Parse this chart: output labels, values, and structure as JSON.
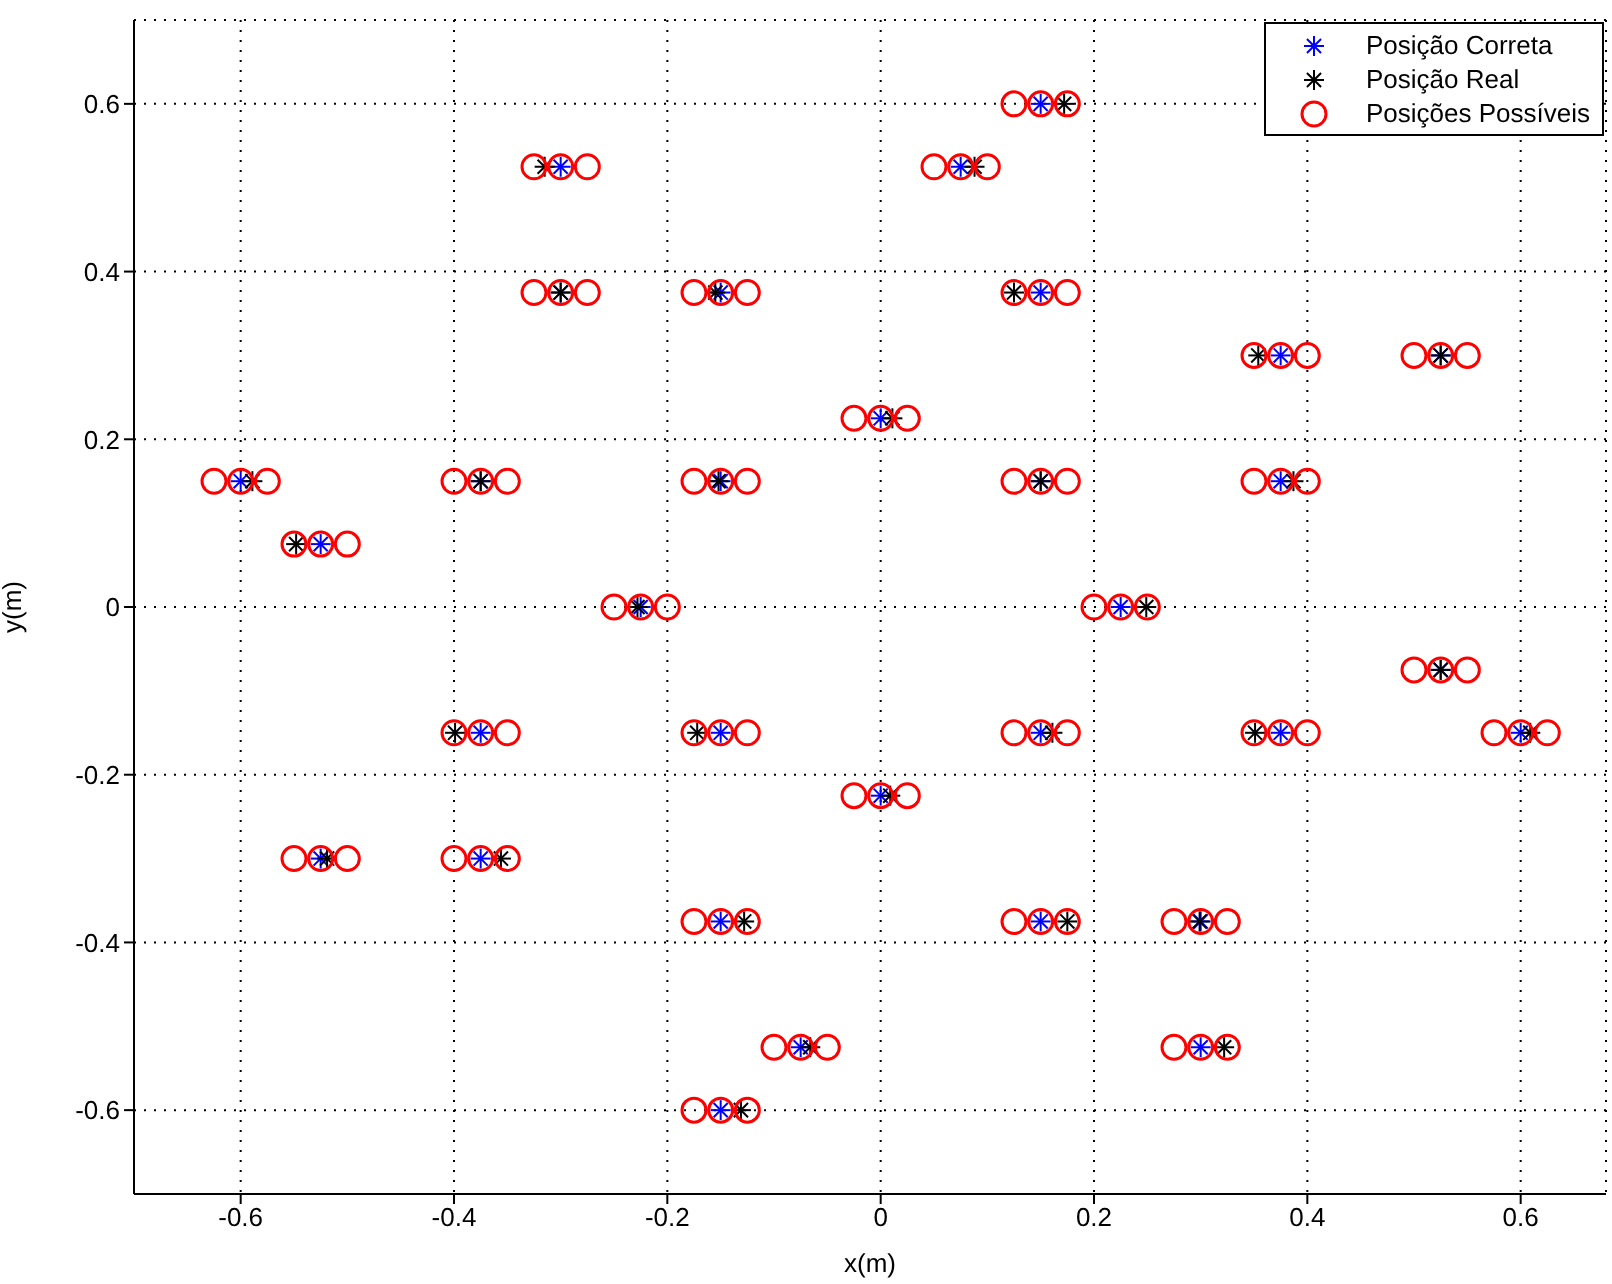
{
  "chart_data": {
    "type": "scatter",
    "xlabel": "x(m)",
    "ylabel": "y(m)",
    "xlim": [
      -0.7,
      0.68
    ],
    "ylim": [
      -0.7,
      0.7
    ],
    "xticks": [
      -0.6,
      -0.4,
      -0.2,
      0,
      0.2,
      0.4,
      0.6
    ],
    "yticks": [
      -0.6,
      -0.4,
      -0.2,
      0,
      0.2,
      0.4,
      0.6
    ],
    "grid": true,
    "legend": "top right",
    "series": [
      {
        "name": "Posição Correta",
        "color": "#0000ff",
        "marker": "cross",
        "x": [
          0.15,
          -0.3,
          0.075,
          -0.3,
          -0.15,
          0.15,
          0.375,
          0.525,
          0,
          -0.6,
          -0.375,
          -0.15,
          0.15,
          0.375,
          -0.525,
          -0.225,
          0.225,
          0.525,
          -0.375,
          -0.15,
          0.15,
          0.375,
          0.6,
          0,
          -0.525,
          -0.375,
          -0.15,
          0.15,
          0.3,
          -0.075,
          0.3,
          -0.15
        ],
        "values": [
          0.6,
          0.525,
          0.525,
          0.375,
          0.375,
          0.375,
          0.3,
          0.3,
          0.225,
          0.15,
          0.15,
          0.15,
          0.15,
          0.15,
          0.075,
          0,
          0,
          -0.075,
          -0.15,
          -0.15,
          -0.15,
          -0.15,
          -0.15,
          -0.225,
          -0.3,
          -0.3,
          -0.375,
          -0.375,
          -0.375,
          -0.525,
          -0.525,
          -0.6
        ]
      },
      {
        "name": "Posição Real",
        "color": "#000000",
        "marker": "cross",
        "x": [
          0.172,
          -0.315,
          0.088,
          -0.3,
          -0.155,
          0.125,
          0.354,
          0.525,
          0.011,
          -0.589,
          -0.375,
          -0.152,
          0.15,
          0.387,
          -0.548,
          -0.228,
          0.249,
          0.525,
          -0.399,
          -0.172,
          0.161,
          0.351,
          0.609,
          0.009,
          -0.519,
          -0.356,
          -0.128,
          0.175,
          0.299,
          -0.066,
          0.322,
          -0.131
        ],
        "values": [
          0.6,
          0.525,
          0.525,
          0.375,
          0.375,
          0.375,
          0.3,
          0.3,
          0.225,
          0.15,
          0.15,
          0.15,
          0.15,
          0.15,
          0.075,
          0,
          0,
          -0.075,
          -0.15,
          -0.15,
          -0.15,
          -0.15,
          -0.15,
          -0.225,
          -0.3,
          -0.3,
          -0.375,
          -0.375,
          -0.375,
          -0.525,
          -0.525,
          -0.6
        ]
      },
      {
        "name": "Posições Possíveis",
        "color": "#ff0000",
        "marker": "circle",
        "x": [
          0.125,
          0.15,
          0.175,
          -0.325,
          -0.3,
          -0.275,
          0.05,
          0.075,
          0.1,
          -0.325,
          -0.3,
          -0.275,
          -0.175,
          -0.15,
          -0.125,
          0.125,
          0.15,
          0.175,
          0.35,
          0.375,
          0.4,
          0.5,
          0.525,
          0.55,
          -0.025,
          0,
          0.025,
          -0.625,
          -0.6,
          -0.575,
          -0.4,
          -0.375,
          -0.35,
          -0.175,
          -0.15,
          -0.125,
          0.125,
          0.15,
          0.175,
          0.35,
          0.375,
          0.4,
          -0.55,
          -0.525,
          -0.5,
          -0.25,
          -0.225,
          -0.2,
          0.2,
          0.225,
          0.25,
          0.5,
          0.525,
          0.55,
          -0.4,
          -0.375,
          -0.35,
          -0.175,
          -0.15,
          -0.125,
          0.125,
          0.15,
          0.175,
          0.35,
          0.375,
          0.4,
          0.575,
          0.6,
          0.625,
          -0.025,
          0,
          0.025,
          -0.55,
          -0.525,
          -0.5,
          -0.4,
          -0.375,
          -0.35,
          -0.175,
          -0.15,
          -0.125,
          0.125,
          0.15,
          0.175,
          0.275,
          0.3,
          0.325,
          -0.1,
          -0.075,
          -0.05,
          0.275,
          0.3,
          0.325,
          -0.175,
          -0.15,
          -0.125
        ],
        "values": [
          0.6,
          0.6,
          0.6,
          0.525,
          0.525,
          0.525,
          0.525,
          0.525,
          0.525,
          0.375,
          0.375,
          0.375,
          0.375,
          0.375,
          0.375,
          0.375,
          0.375,
          0.375,
          0.3,
          0.3,
          0.3,
          0.3,
          0.3,
          0.3,
          0.225,
          0.225,
          0.225,
          0.15,
          0.15,
          0.15,
          0.15,
          0.15,
          0.15,
          0.15,
          0.15,
          0.15,
          0.15,
          0.15,
          0.15,
          0.15,
          0.15,
          0.15,
          0.075,
          0.075,
          0.075,
          0,
          0,
          0,
          0,
          0,
          0,
          -0.075,
          -0.075,
          -0.075,
          -0.15,
          -0.15,
          -0.15,
          -0.15,
          -0.15,
          -0.15,
          -0.15,
          -0.15,
          -0.15,
          -0.15,
          -0.15,
          -0.15,
          -0.15,
          -0.15,
          -0.15,
          -0.225,
          -0.225,
          -0.225,
          -0.3,
          -0.3,
          -0.3,
          -0.3,
          -0.3,
          -0.3,
          -0.375,
          -0.375,
          -0.375,
          -0.375,
          -0.375,
          -0.375,
          -0.375,
          -0.375,
          -0.375,
          -0.525,
          -0.525,
          -0.525,
          -0.525,
          -0.525,
          -0.525,
          -0.6,
          -0.6,
          -0.6
        ]
      }
    ]
  }
}
